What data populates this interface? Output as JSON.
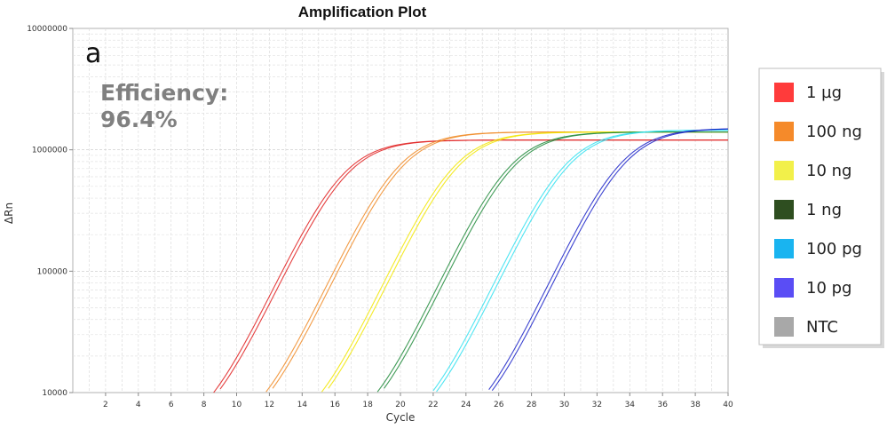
{
  "chart_data": {
    "type": "line",
    "title": "Amplification Plot",
    "panel_label": "a",
    "efficiency_label": "Efficiency:",
    "efficiency_value": "96.4%",
    "xlabel": "Cycle",
    "ylabel": "ΔRn",
    "xlim": [
      0,
      40
    ],
    "ylim": [
      10000,
      10000000
    ],
    "yscale": "log",
    "grid": true,
    "legend_position": "right",
    "x_ticks": [
      "2",
      "4",
      "6",
      "8",
      "10",
      "12",
      "14",
      "16",
      "18",
      "20",
      "22",
      "24",
      "26",
      "28",
      "30",
      "32",
      "34",
      "36",
      "38",
      "40"
    ],
    "y_ticks": [
      "10000",
      "100000",
      "1000000",
      "10000000"
    ],
    "series": [
      {
        "name": "1 µg",
        "color": "#ff3b3b",
        "line_color": "#e02020",
        "ct": 16.5,
        "plateau": 1200000
      },
      {
        "name": "100 ng",
        "color": "#f58a2a",
        "line_color": "#f08a24",
        "ct": 19.9,
        "plateau": 1400000
      },
      {
        "name": "10 ng",
        "color": "#f2f04a",
        "line_color": "#f2e600",
        "ct": 23.3,
        "plateau": 1400000
      },
      {
        "name": "1 ng",
        "color": "#2e4e20",
        "line_color": "#1f8a3a",
        "ct": 26.7,
        "plateau": 1400000
      },
      {
        "name": "100 pg",
        "color": "#19b4f0",
        "line_color": "#30e0f0",
        "ct": 30.1,
        "plateau": 1450000
      },
      {
        "name": "10 pg",
        "color": "#5a4df5",
        "line_color": "#1a22c8",
        "ct": 33.5,
        "plateau": 1500000
      },
      {
        "name": "NTC",
        "color": "#a8a8a8",
        "line_color": "#a8a8a8",
        "ct": null,
        "plateau": null
      }
    ]
  }
}
